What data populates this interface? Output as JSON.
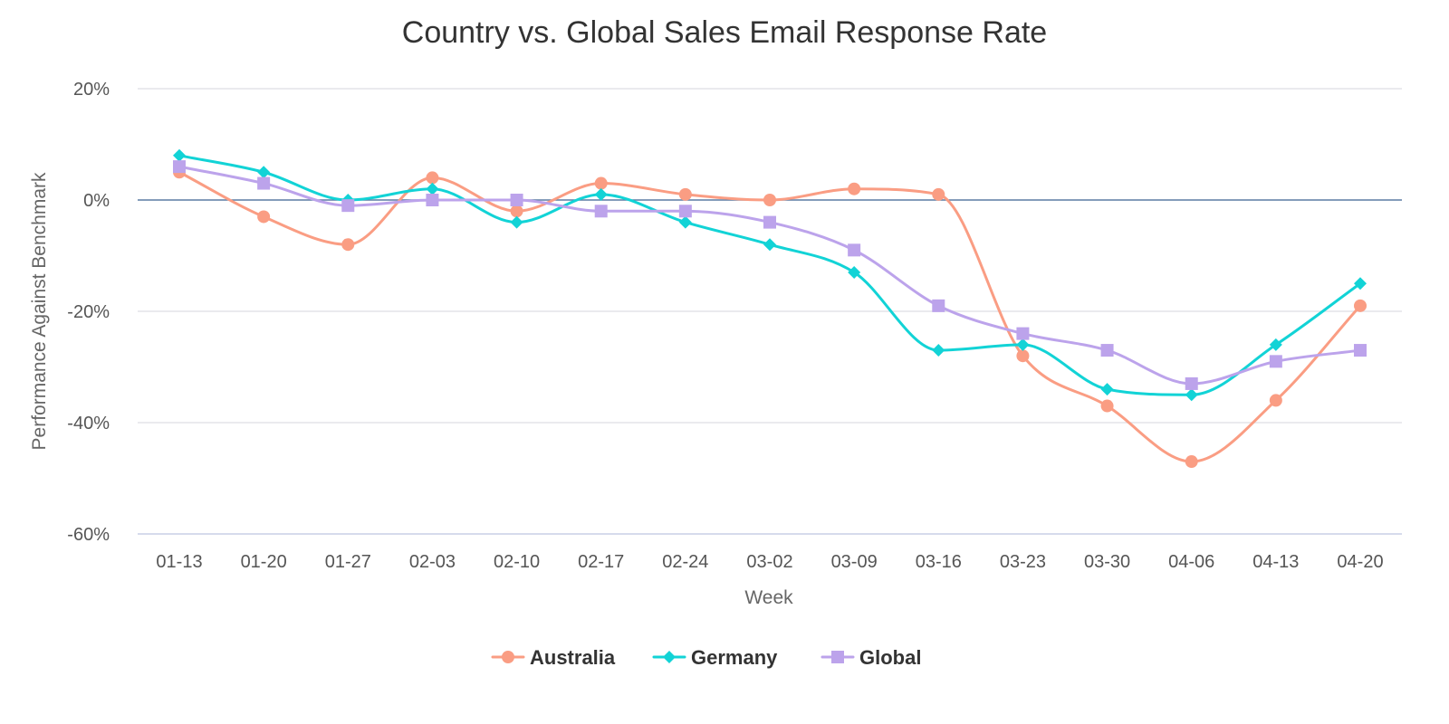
{
  "chart_data": {
    "type": "line",
    "title": "Country vs. Global Sales Email Response Rate",
    "xlabel": "Week",
    "ylabel": "Performance Against Benchmark",
    "categories": [
      "01-13",
      "01-20",
      "01-27",
      "02-03",
      "02-10",
      "02-17",
      "02-24",
      "03-02",
      "03-09",
      "03-16",
      "03-23",
      "03-30",
      "04-06",
      "04-13",
      "04-20"
    ],
    "ylim": [
      -60,
      20
    ],
    "yticks": [
      20,
      0,
      -20,
      -40,
      -60
    ],
    "ytick_labels": [
      "20%",
      "0%",
      "-20%",
      "-40%",
      "-60%"
    ],
    "grid": true,
    "legend_position": "bottom-center",
    "series": [
      {
        "name": "Australia",
        "color": "#fa9d83",
        "marker": "circle",
        "values": [
          5,
          -3,
          -8,
          4,
          -2,
          3,
          1,
          0,
          2,
          1,
          -28,
          -37,
          -47,
          -36,
          -19
        ]
      },
      {
        "name": "Germany",
        "color": "#12d3d6",
        "marker": "diamond",
        "values": [
          8,
          5,
          0,
          2,
          -4,
          1,
          -4,
          -8,
          -13,
          -27,
          -26,
          -34,
          -35,
          -26,
          -15
        ]
      },
      {
        "name": "Global",
        "color": "#bca3eb",
        "marker": "square",
        "values": [
          6,
          3,
          -1,
          0,
          0,
          -2,
          -2,
          -4,
          -9,
          -19,
          -24,
          -27,
          -33,
          -29,
          -27
        ]
      }
    ]
  }
}
